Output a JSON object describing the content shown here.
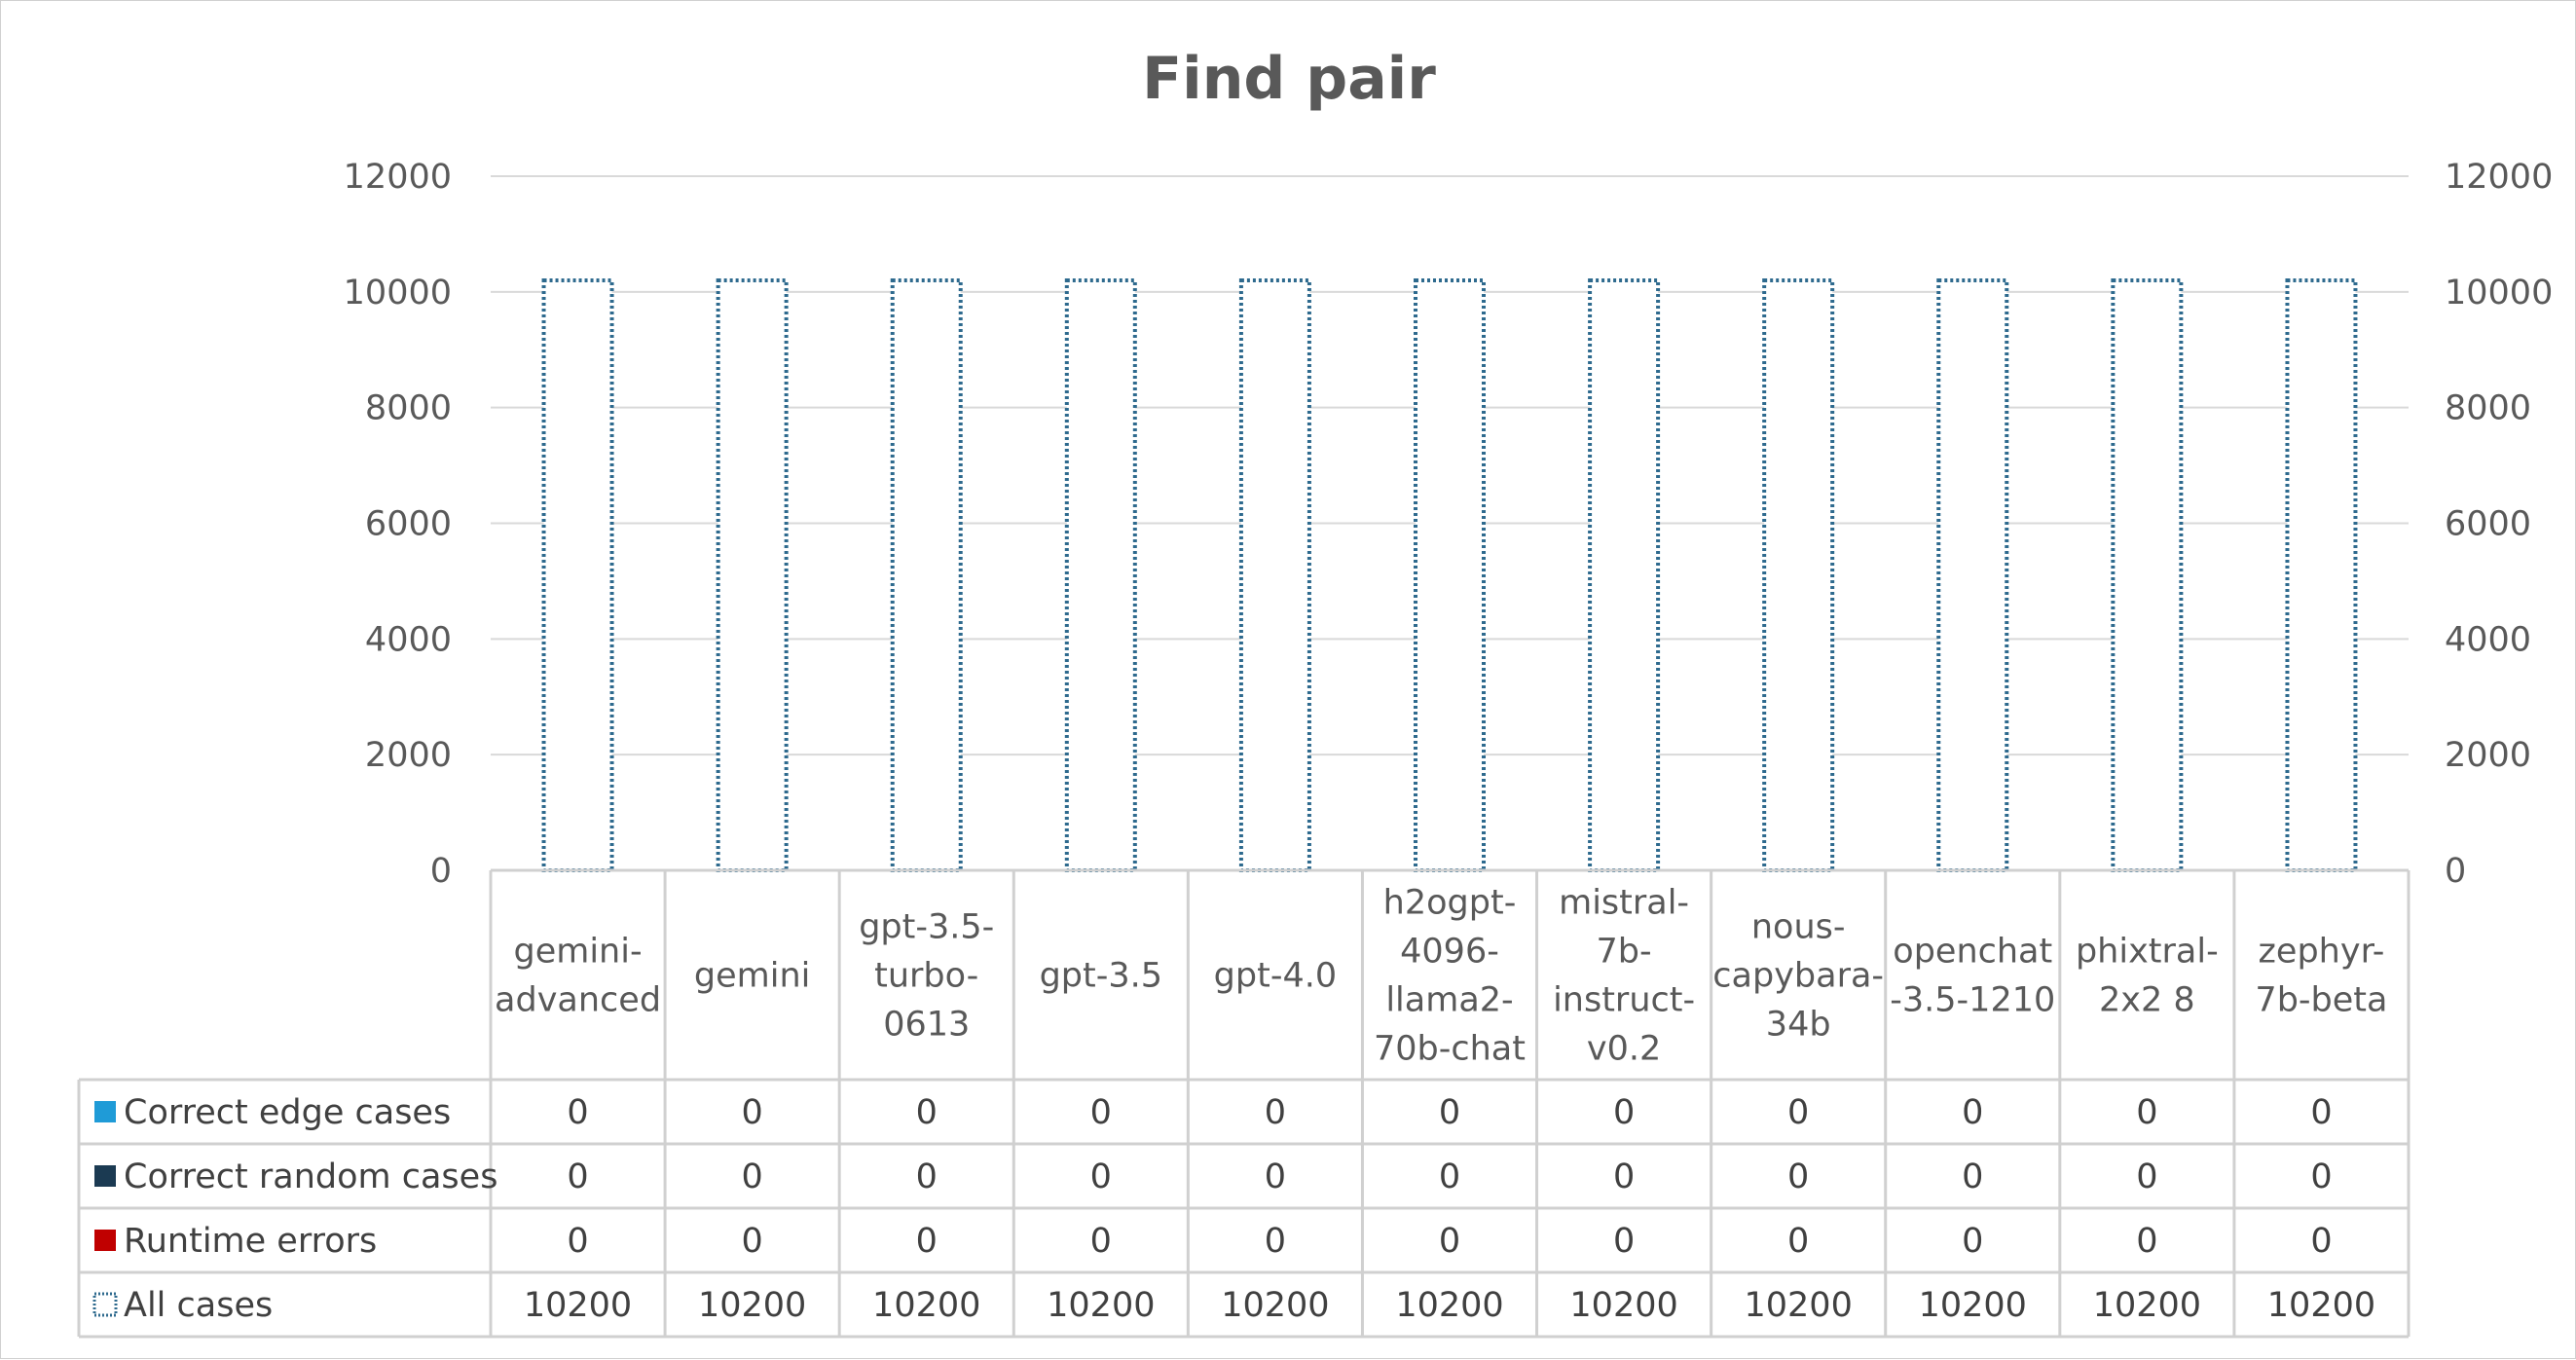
{
  "chart_data": {
    "type": "bar",
    "title": "Find pair",
    "xlabel": "",
    "ylabel": "",
    "ylim": [
      0,
      12000
    ],
    "y_ticks": [
      "0",
      "2000",
      "4000",
      "6000",
      "8000",
      "10000",
      "12000"
    ],
    "secondary_y_ticks": [
      "0",
      "2000",
      "4000",
      "6000",
      "8000",
      "10000",
      "12000"
    ],
    "grid": true,
    "legend": "data-table",
    "categories": [
      [
        "gemini-",
        "advanced"
      ],
      [
        "gemini"
      ],
      [
        "gpt-3.5-",
        "turbo-",
        "0613"
      ],
      [
        "gpt-3.5"
      ],
      [
        "gpt-4.0"
      ],
      [
        "h2ogpt-",
        "4096-",
        "llama2-",
        "70b-chat"
      ],
      [
        "mistral-",
        "7b-",
        "instruct-",
        "v0.2"
      ],
      [
        "nous-",
        "capybara-",
        "34b"
      ],
      [
        "openchat",
        "-3.5-1210"
      ],
      [
        "phixtral-",
        "2x2 8"
      ],
      [
        "zephyr-",
        "7b-beta"
      ]
    ],
    "series": [
      {
        "name": "Correct edge cases",
        "color": "#1f9bd7",
        "style": "solid",
        "values": [
          0,
          0,
          0,
          0,
          0,
          0,
          0,
          0,
          0,
          0,
          0
        ]
      },
      {
        "name": "Correct random cases",
        "color": "#1b3a52",
        "style": "solid",
        "values": [
          0,
          0,
          0,
          0,
          0,
          0,
          0,
          0,
          0,
          0,
          0
        ]
      },
      {
        "name": "Runtime errors",
        "color": "#c00000",
        "style": "solid",
        "values": [
          0,
          0,
          0,
          0,
          0,
          0,
          0,
          0,
          0,
          0,
          0
        ]
      },
      {
        "name": "All cases",
        "color": "#2e6a8e",
        "style": "dotted-outline",
        "values": [
          10200,
          10200,
          10200,
          10200,
          10200,
          10200,
          10200,
          10200,
          10200,
          10200,
          10200
        ]
      }
    ]
  }
}
